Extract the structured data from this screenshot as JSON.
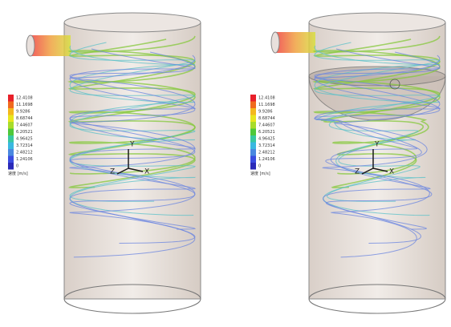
{
  "panels": [
    {
      "legend": {
        "values": [
          "12.4108",
          "11.1698",
          "9.9286",
          "8.68744",
          "7.44607",
          "6.20521",
          "4.96425",
          "3.72314",
          "2.48212",
          "1.24106",
          "0"
        ],
        "unit": "速度 [m/s]"
      },
      "axes": {
        "x": "X",
        "y": "Y",
        "z": "Z"
      }
    },
    {
      "legend": {
        "values": [
          "12.4108",
          "11.1698",
          "9.9286",
          "8.68744",
          "7.44607",
          "6.20521",
          "4.96425",
          "3.72314",
          "2.48212",
          "1.24106",
          "0"
        ],
        "unit": "速度 [m/s]"
      },
      "axes": {
        "x": "X",
        "y": "Y",
        "z": "Z"
      }
    }
  ]
}
